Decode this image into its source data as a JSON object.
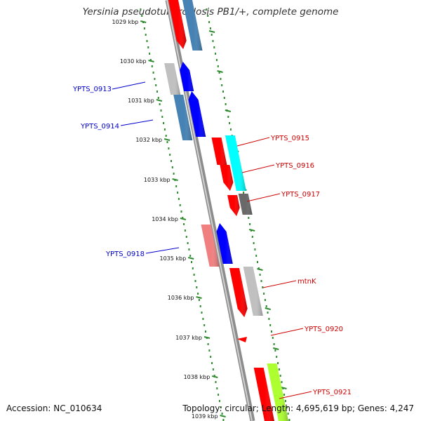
{
  "title": "Yersinia pseudotuberculosis PB1/+, complete genome",
  "footer": {
    "accession": "Accession: NC_010634",
    "summary": "Topology: circular; Length: 4,695,619 bp; Genes: 4,247"
  },
  "colors": {
    "backbone": "#8c8c8c",
    "scale_ticks": "#2e8b2e",
    "forward_label": "#0000cc",
    "reverse_label": "#cc0000",
    "feature_red": "#ff0000",
    "feature_blue": "#0000ff",
    "feature_steelblue": "#4682b4",
    "feature_lightgray": "#c0c0c0",
    "feature_cyan": "#00ffff",
    "feature_darkgray": "#696969",
    "feature_salmon": "#f08080",
    "feature_lightgreen": "#adff2f"
  },
  "scale": {
    "unit": "kbp",
    "ticks": [
      "1029 kbp",
      "1030 kbp",
      "1031 kbp",
      "1032 kbp",
      "1033 kbp",
      "1034 kbp",
      "1035 kbp",
      "1036 kbp",
      "1037 kbp",
      "1038 kbp",
      "1039 kbp"
    ]
  },
  "genes": [
    {
      "label": "YPTS_0913",
      "strand": "forward"
    },
    {
      "label": "YPTS_0914",
      "strand": "forward"
    },
    {
      "label": "YPTS_0915",
      "strand": "reverse"
    },
    {
      "label": "YPTS_0916",
      "strand": "reverse"
    },
    {
      "label": "YPTS_0917",
      "strand": "reverse"
    },
    {
      "label": "YPTS_0918",
      "strand": "forward"
    },
    {
      "label": "mtnK",
      "strand": "reverse"
    },
    {
      "label": "YPTS_0920",
      "strand": "reverse"
    },
    {
      "label": "YPTS_0921",
      "strand": "reverse"
    }
  ]
}
